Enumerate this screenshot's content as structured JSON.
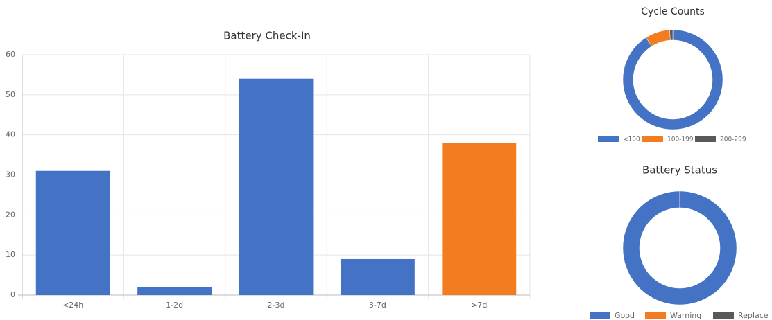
{
  "chart_data": [
    {
      "type": "bar",
      "title": "Battery Check-In",
      "categories": [
        "<24h",
        "1-2d",
        "2-3d",
        "3-7d",
        ">7d"
      ],
      "values": [
        31,
        2,
        54,
        9,
        38
      ],
      "colors": [
        "#4472c4",
        "#4472c4",
        "#4472c4",
        "#4472c4",
        "#f47c20"
      ],
      "ylim": [
        0,
        60
      ],
      "yticks": [
        0,
        10,
        20,
        30,
        40,
        50,
        60
      ],
      "grid": true
    },
    {
      "type": "doughnut",
      "title": "Cycle Counts",
      "categories": [
        "<100",
        "100-199",
        "200-299"
      ],
      "values": [
        91,
        8,
        1
      ],
      "colors": [
        "#4472c4",
        "#f47c20",
        "#595959"
      ]
    },
    {
      "type": "doughnut",
      "title": "Battery Status",
      "categories": [
        "Good",
        "Warning",
        "Replace"
      ],
      "values": [
        100,
        0,
        0
      ],
      "colors": [
        "#4472c4",
        "#f47c20",
        "#595959"
      ]
    }
  ]
}
